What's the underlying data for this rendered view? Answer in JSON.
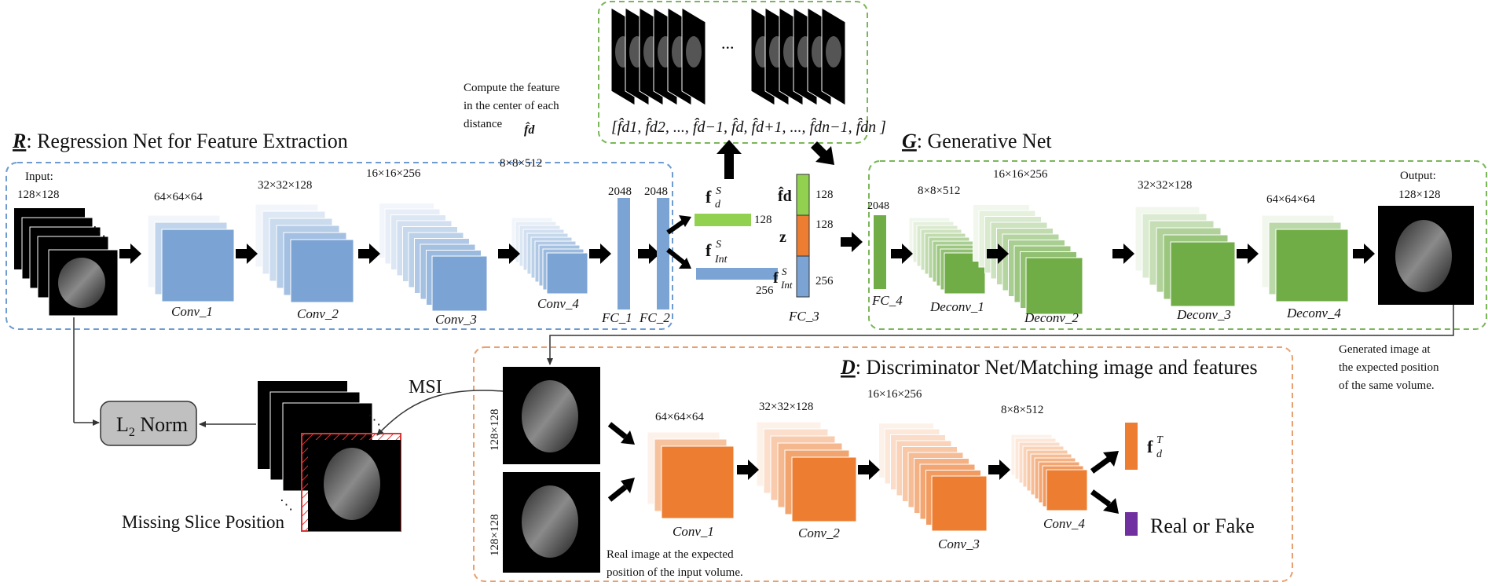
{
  "colors": {
    "blue": "#7ba4d4",
    "green": "#70ad47",
    "orange": "#ed7d31",
    "light_green": "#92d050",
    "purple": "#7030a0",
    "blue_dash": "#6f9bd1",
    "green_dash": "#7bb65a",
    "orange_dash": "#e8a070",
    "gray_box": "#c0c0c0"
  },
  "regression": {
    "title_letter": "R",
    "title_rest": ": Regression Net for Feature Extraction",
    "input_label_1": "Input:",
    "input_label_2": "128×128",
    "dims": [
      "64×64×64",
      "32×32×128",
      "16×16×256",
      "8×8×512"
    ],
    "convs": [
      "Conv_1",
      "Conv_2",
      "Conv_3",
      "Conv_4"
    ],
    "fc_dims": [
      "2048",
      "2048"
    ],
    "fcs": [
      "FC_1",
      "FC_2"
    ]
  },
  "features": {
    "fd_label": "f",
    "fd_sup": "S",
    "fd_sub": "d",
    "fd_dim": "128",
    "fint_label": "f",
    "fint_sup": "S",
    "fint_sub": "Int",
    "fint_dim": "256"
  },
  "center": {
    "compute_text": [
      "Compute the feature",
      "in the center of each",
      "distance"
    ],
    "dots": "...",
    "sequence": "[f̂d1, f̂d2, ..., f̂d−1, f̂d, f̂d+1, ..., f̂dn−1, f̂dn ]",
    "fc3_labels": [
      "f̂d",
      "z",
      "f"
    ],
    "fc3_sup": "S",
    "fc3_sub": "Int",
    "fc3_dims": [
      "128",
      "128",
      "256"
    ],
    "fc3_name": "FC_3"
  },
  "generative": {
    "title_letter": "G",
    "title_rest": ": Generative Net",
    "fc4_dim": "2048",
    "fc4_name": "FC_4",
    "dims": [
      "8×8×512",
      "16×16×256",
      "32×32×128",
      "64×64×64"
    ],
    "deconvs": [
      "Deconv_1",
      "Deconv_2",
      "Deconv_3",
      "Deconv_4"
    ],
    "output_1": "Output:",
    "output_2": "128×128",
    "generated_text": [
      "Generated image at",
      "the expected position",
      "of the same volume."
    ]
  },
  "discriminator": {
    "title_letter": "D",
    "title_rest": ": Discriminator Net/Matching image and features",
    "side_labels": [
      "128×128",
      "128×128"
    ],
    "dims": [
      "64×64×64",
      "32×32×128",
      "16×16×256",
      "8×8×512"
    ],
    "convs": [
      "Conv_1",
      "Conv_2",
      "Conv_3",
      "Conv_4"
    ],
    "ft_label": "f",
    "ft_sup": "T",
    "ft_sub": "d",
    "real_fake": "Real or Fake",
    "real_text": [
      "Real image at the expected",
      "position of the input volume."
    ]
  },
  "loss": {
    "l2_label": "L",
    "l2_sub": "2",
    "l2_rest": " Norm",
    "msi": "MSI",
    "missing": "Missing Slice Position"
  }
}
